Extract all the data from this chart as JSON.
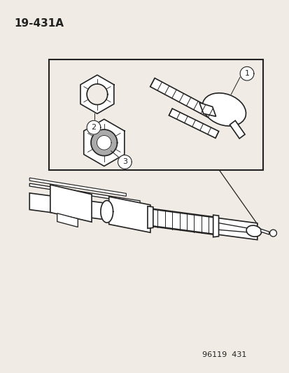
{
  "bg_color": "#f0ebe4",
  "line_color": "#222222",
  "title_label": "19-431A",
  "footer_label": "96119  431"
}
